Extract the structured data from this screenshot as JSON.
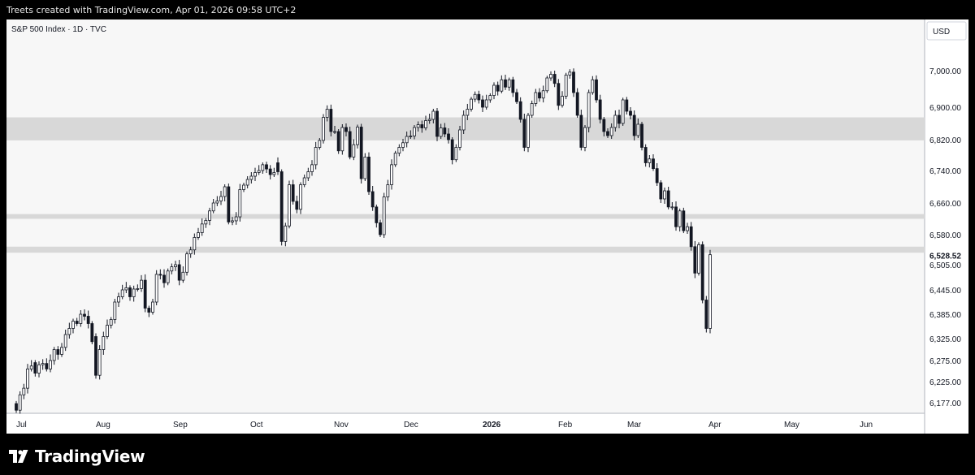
{
  "header": {
    "caption": "Treets created with TradingView.com, Apr 01, 2026 09:58 UTC+2"
  },
  "footer": {
    "logo_text": "TradingView"
  },
  "chart_data": {
    "type": "candlestick",
    "title": "S&P 500 Index · 1D · TVC",
    "currency": "USD",
    "last_price": "6,528.52",
    "y_ticks": [
      "7,000.00",
      "6,900.00",
      "6,820.00",
      "6,740.00",
      "6,660.00",
      "6,580.00",
      "6,505.00",
      "6,445.00",
      "6,385.00",
      "6,325.00",
      "6,275.00",
      "6,225.00",
      "6,177.00"
    ],
    "x_ticks": [
      "Jul",
      "Aug",
      "Sep",
      "Oct",
      "Nov",
      "Dec",
      "2026",
      "Feb",
      "Mar",
      "Apr",
      "May",
      "Jun"
    ],
    "bold_x_tick": "2026",
    "zones": [
      [
        6818,
        6875
      ],
      [
        6620,
        6632
      ],
      [
        6535,
        6550
      ]
    ],
    "colors": {
      "up_body": "#ffffff",
      "down_body": "#131722",
      "wick": "#131722",
      "zone": "#d8d8d8",
      "plot_bg": "#f7f7f7",
      "price_tag_bg": "#ffffff"
    },
    "closes": [
      6160,
      6195,
      6210,
      6255,
      6262,
      6245,
      6265,
      6268,
      6255,
      6275,
      6300,
      6289,
      6305,
      6335,
      6350,
      6368,
      6362,
      6385,
      6380,
      6362,
      6318,
      6240,
      6300,
      6330,
      6358,
      6372,
      6415,
      6428,
      6445,
      6450,
      6428,
      6447,
      6448,
      6468,
      6400,
      6390,
      6415,
      6482,
      6480,
      6462,
      6490,
      6500,
      6505,
      6468,
      6487,
      6532,
      6542,
      6573,
      6585,
      6607,
      6616,
      6640,
      6660,
      6665,
      6676,
      6700,
      6612,
      6615,
      6625,
      6693,
      6704,
      6718,
      6726,
      6735,
      6740,
      6755,
      6744,
      6730,
      6735,
      6737,
      6563,
      6602,
      6705,
      6664,
      6644,
      6705,
      6722,
      6737,
      6755,
      6800,
      6818,
      6875,
      6895,
      6840,
      6840,
      6791,
      6850,
      6840,
      6775,
      6807,
      6851,
      6720,
      6775,
      6688,
      6650,
      6610,
      6580,
      6675,
      6705,
      6755,
      6785,
      6800,
      6812,
      6828,
      6829,
      6850,
      6857,
      6849,
      6867,
      6870,
      6890,
      6828,
      6849,
      6834,
      6820,
      6768,
      6800,
      6844,
      6880,
      6895,
      6922,
      6935,
      6920,
      6900,
      6920,
      6932,
      6960,
      6944,
      6975,
      6955,
      6975,
      6940,
      6915,
      6870,
      6800,
      6880,
      6910,
      6940,
      6925,
      6945,
      6980,
      6990,
      6965,
      6905,
      6930,
      6988,
      6996,
      6940,
      6880,
      6800,
      6850,
      6940,
      6975,
      6920,
      6870,
      6840,
      6830,
      6850,
      6880,
      6860,
      6920,
      6890,
      6880,
      6830,
      6858,
      6800,
      6760,
      6770,
      6745,
      6710,
      6670,
      6690,
      6650,
      6650,
      6600,
      6640,
      6590,
      6600,
      6550,
      6485,
      6555,
      6420,
      6350,
      6530
    ],
    "opens": [
      6175,
      6160,
      6195,
      6210,
      6255,
      6270,
      6245,
      6265,
      6268,
      6255,
      6275,
      6300,
      6289,
      6305,
      6335,
      6350,
      6368,
      6362,
      6385,
      6380,
      6362,
      6330,
      6240,
      6300,
      6330,
      6358,
      6372,
      6415,
      6428,
      6445,
      6450,
      6428,
      6447,
      6448,
      6468,
      6400,
      6390,
      6415,
      6482,
      6480,
      6462,
      6490,
      6500,
      6505,
      6468,
      6487,
      6532,
      6542,
      6573,
      6585,
      6607,
      6616,
      6640,
      6660,
      6665,
      6676,
      6700,
      6612,
      6615,
      6625,
      6693,
      6704,
      6718,
      6726,
      6735,
      6740,
      6755,
      6744,
      6730,
      6760,
      6737,
      6563,
      6602,
      6705,
      6664,
      6644,
      6705,
      6722,
      6737,
      6755,
      6800,
      6818,
      6875,
      6895,
      6840,
      6840,
      6791,
      6850,
      6840,
      6775,
      6807,
      6851,
      6720,
      6775,
      6688,
      6650,
      6610,
      6580,
      6675,
      6705,
      6755,
      6785,
      6800,
      6812,
      6828,
      6829,
      6850,
      6857,
      6849,
      6867,
      6870,
      6890,
      6828,
      6849,
      6834,
      6820,
      6768,
      6800,
      6844,
      6880,
      6895,
      6922,
      6935,
      6920,
      6900,
      6920,
      6932,
      6960,
      6944,
      6975,
      6955,
      6975,
      6940,
      6915,
      6870,
      6800,
      6880,
      6910,
      6940,
      6925,
      6945,
      6980,
      6990,
      6965,
      6905,
      6930,
      6988,
      6996,
      6940,
      6880,
      6800,
      6850,
      6940,
      6975,
      6920,
      6870,
      6840,
      6830,
      6850,
      6880,
      6860,
      6920,
      6890,
      6880,
      6830,
      6858,
      6800,
      6760,
      6770,
      6745,
      6710,
      6670,
      6690,
      6650,
      6650,
      6600,
      6640,
      6590,
      6600,
      6550,
      6485,
      6555,
      6420,
      6350
    ]
  }
}
